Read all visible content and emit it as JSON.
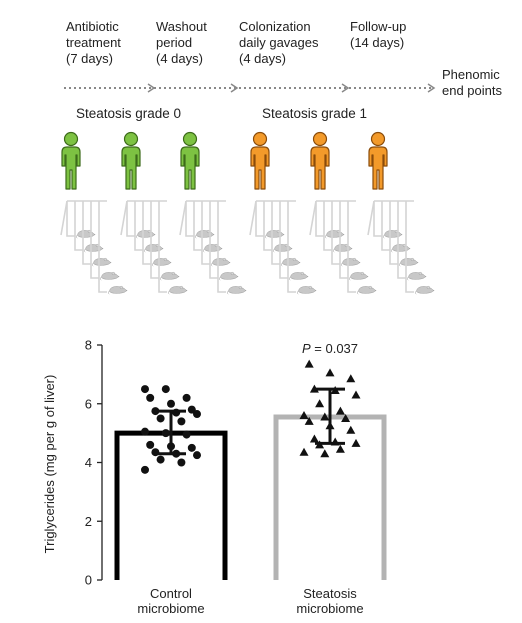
{
  "protocol": {
    "steps": [
      "Antibiotic\ntreatment\n(7 days)",
      "Washout\nperiod\n(4 days)",
      "Colonization\ndaily gavages\n(4 days)",
      "Follow-up\n(14 days)"
    ],
    "endpoint": "Phenomic\nend points"
  },
  "groups": {
    "left": "Steatosis grade 0",
    "right": "Steatosis grade 1"
  },
  "colors": {
    "grade0": "#7dc242",
    "grade0_outline": "#3d6b1a",
    "grade1": "#f39a2a",
    "grade1_outline": "#8a4c0b",
    "control_bar": "#000000",
    "steatosis_bar": "#b3b3b3",
    "mice": "#c8c8c8"
  },
  "chart_data": {
    "type": "bar",
    "categories": [
      "Control\nmicrobiome",
      "Steatosis\nmicrobiome"
    ],
    "values": [
      5.0,
      5.55
    ],
    "sd_upper": [
      5.75,
      6.5
    ],
    "sd_lower": [
      4.3,
      4.65
    ],
    "ylabel": "Triglycerides (mg per g of liver)",
    "ylim": [
      0,
      8
    ],
    "yticks": [
      0,
      2,
      4,
      6,
      8
    ],
    "annotation": "P = 0.037",
    "points": [
      [
        6.5,
        6.5,
        6.2,
        6.2,
        6.0,
        5.8,
        5.75,
        5.7,
        5.65,
        5.5,
        5.4,
        5.05,
        5.0,
        4.95,
        4.6,
        4.55,
        4.5,
        4.35,
        4.3,
        4.25,
        4.1,
        4.0,
        3.75
      ],
      [
        7.35,
        7.05,
        6.85,
        6.5,
        6.45,
        6.3,
        6.0,
        5.75,
        5.6,
        5.55,
        5.5,
        5.4,
        5.25,
        5.1,
        4.8,
        4.7,
        4.65,
        4.6,
        4.45,
        4.35,
        4.3
      ]
    ]
  }
}
